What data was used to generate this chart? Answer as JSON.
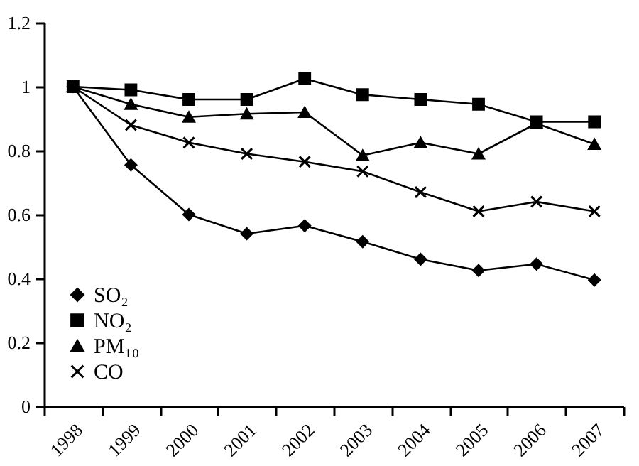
{
  "chart_data": {
    "type": "line",
    "categories": [
      "1998",
      "1999",
      "2000",
      "2001",
      "2002",
      "2003",
      "2004",
      "2005",
      "2006",
      "2007"
    ],
    "ylim": [
      0,
      1.2
    ],
    "yticks": [
      0,
      0.2,
      0.4,
      0.6,
      0.8,
      1,
      1.2
    ],
    "grid": false,
    "legend": "bottom left",
    "series": [
      {
        "name": "SO₂",
        "color": "#000000",
        "marker": "diamond",
        "values": [
          1,
          0.755,
          0.6,
          0.54,
          0.565,
          0.515,
          0.46,
          0.425,
          0.445,
          0.395
        ]
      },
      {
        "name": "NO₂",
        "color": "#000000",
        "marker": "square",
        "values": [
          1,
          0.99,
          0.96,
          0.96,
          1.025,
          0.975,
          0.96,
          0.945,
          0.89,
          0.89
        ]
      },
      {
        "name": "PM₁₀",
        "color": "#000000",
        "marker": "triangle",
        "values": [
          1,
          0.945,
          0.905,
          0.915,
          0.92,
          0.785,
          0.825,
          0.79,
          0.885,
          0.82
        ]
      },
      {
        "name": "CO",
        "color": "#000000",
        "marker": "cross",
        "values": [
          1,
          0.88,
          0.825,
          0.79,
          0.765,
          0.735,
          0.67,
          0.61,
          0.64,
          0.61
        ]
      }
    ]
  }
}
